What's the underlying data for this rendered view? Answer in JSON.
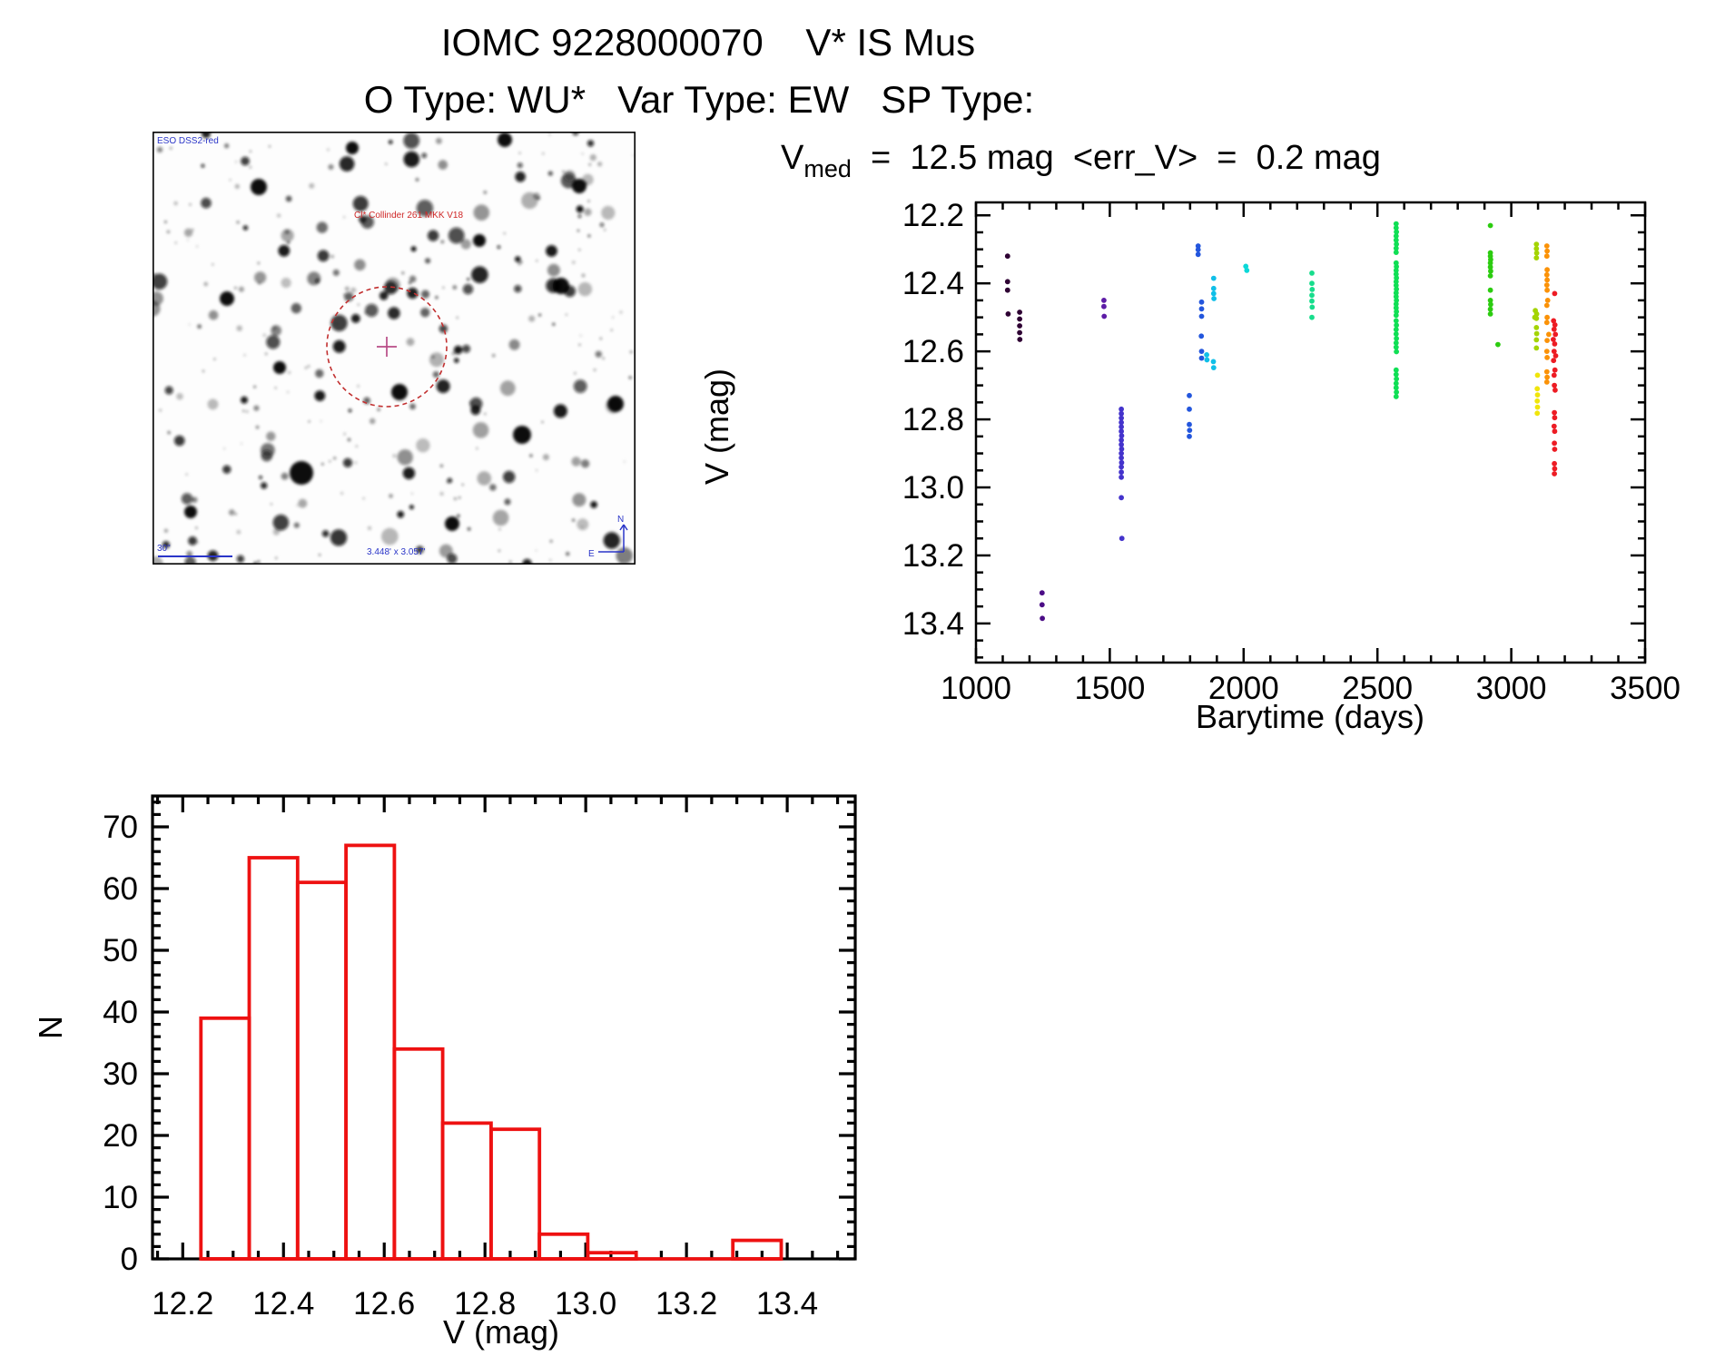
{
  "header": {
    "line1": "IOMC 9228000070    V* IS Mus",
    "line2": "O Type: WU*   Var Type: EW   SP Type:"
  },
  "finder": {
    "survey_label": "ESO DSS2-red",
    "object_label": "Cl* Collinder 261 MKK V18",
    "scale_bar_label": "30\"",
    "field_size_label": "3.448' x 3.057'",
    "compass_north": "N",
    "compass_east": "E",
    "annotation_blue": "#2a35c8",
    "annotation_red": "#c23030",
    "target_cross_color": "#b84b86"
  },
  "chart_data": [
    {
      "type": "scatter",
      "name": "light_curve",
      "title_v": "V",
      "title_sub": "med",
      "title_rest": "  =  12.5 mag  <err_V>  =  0.2 mag",
      "xlabel": "Barytime (days)",
      "ylabel": "V (mag)",
      "x_range": [
        1000,
        3500
      ],
      "y_range": [
        12.162,
        13.515
      ],
      "y_increases_downward": true,
      "x_ticks": [
        1000,
        1500,
        2000,
        2500,
        3000,
        3500
      ],
      "x_tick_labels": [
        "1000",
        "1500",
        "2000",
        "2500",
        "3000",
        "3500"
      ],
      "x_minor_step": 100,
      "y_ticks": [
        12.2,
        12.4,
        12.6,
        12.8,
        13.0,
        13.2,
        13.4
      ],
      "y_tick_labels": [
        "12.2",
        "12.4",
        "12.6",
        "12.8",
        "13.0",
        "13.2",
        "13.4"
      ],
      "y_minor_step": 0.05,
      "grid": false,
      "legend": "none (points color-coded by epoch, violet=early to red=late)",
      "palette": [
        "#2e0033",
        "#4b0d86",
        "#5d1ca6",
        "#4433cc",
        "#2356dd",
        "#10bfe8",
        "#0cd8d8",
        "#17dd8c",
        "#10df55",
        "#2ccc10",
        "#a4d403",
        "#f0e50a",
        "#fb9207",
        "#ed1c24"
      ],
      "points": [
        [
          1118,
          12.32,
          0
        ],
        [
          1118,
          12.395,
          0
        ],
        [
          1118,
          12.42,
          0
        ],
        [
          1120,
          12.49,
          0
        ],
        [
          1163,
          12.485,
          0
        ],
        [
          1163,
          12.505,
          0
        ],
        [
          1163,
          12.525,
          0
        ],
        [
          1163,
          12.545,
          0
        ],
        [
          1164,
          12.565,
          0
        ],
        [
          1247,
          13.31,
          1
        ],
        [
          1247,
          13.345,
          1
        ],
        [
          1248,
          13.385,
          1
        ],
        [
          1478,
          12.45,
          2
        ],
        [
          1478,
          12.468,
          2
        ],
        [
          1479,
          12.497,
          2
        ],
        [
          1543,
          12.77,
          3
        ],
        [
          1543,
          12.783,
          3
        ],
        [
          1543,
          12.796,
          3
        ],
        [
          1543,
          12.809,
          3
        ],
        [
          1543,
          12.822,
          3
        ],
        [
          1543,
          12.835,
          3
        ],
        [
          1544,
          12.848,
          3
        ],
        [
          1543,
          12.861,
          3
        ],
        [
          1543,
          12.874,
          3
        ],
        [
          1544,
          12.887,
          3
        ],
        [
          1543,
          12.9,
          3
        ],
        [
          1543,
          12.913,
          3
        ],
        [
          1544,
          12.927,
          3
        ],
        [
          1543,
          12.94,
          3
        ],
        [
          1543,
          12.955,
          3
        ],
        [
          1543,
          12.97,
          3
        ],
        [
          1543,
          13.03,
          3
        ],
        [
          1545,
          13.15,
          3
        ],
        [
          1797,
          12.73,
          4
        ],
        [
          1797,
          12.77,
          4
        ],
        [
          1797,
          12.815,
          4
        ],
        [
          1798,
          12.832,
          4
        ],
        [
          1797,
          12.85,
          4
        ],
        [
          1830,
          12.29,
          4
        ],
        [
          1830,
          12.301,
          4
        ],
        [
          1830,
          12.315,
          4
        ],
        [
          1843,
          12.455,
          4
        ],
        [
          1843,
          12.475,
          4
        ],
        [
          1843,
          12.497,
          4
        ],
        [
          1842,
          12.555,
          4
        ],
        [
          1843,
          12.6,
          4
        ],
        [
          1843,
          12.62,
          4
        ],
        [
          1862,
          12.61,
          5
        ],
        [
          1863,
          12.625,
          5
        ],
        [
          1888,
          12.385,
          5
        ],
        [
          1888,
          12.415,
          5
        ],
        [
          1888,
          12.43,
          5
        ],
        [
          1889,
          12.445,
          5
        ],
        [
          1887,
          12.63,
          5
        ],
        [
          1888,
          12.648,
          5
        ],
        [
          2008,
          12.35,
          6
        ],
        [
          2012,
          12.362,
          6
        ],
        [
          2255,
          12.37,
          7
        ],
        [
          2255,
          12.4,
          7
        ],
        [
          2256,
          12.418,
          7
        ],
        [
          2255,
          12.435,
          7
        ],
        [
          2255,
          12.452,
          7
        ],
        [
          2256,
          12.47,
          7
        ],
        [
          2255,
          12.5,
          7
        ],
        [
          2570,
          12.225,
          8
        ],
        [
          2570,
          12.237,
          8
        ],
        [
          2571,
          12.249,
          8
        ],
        [
          2570,
          12.261,
          8
        ],
        [
          2570,
          12.273,
          8
        ],
        [
          2571,
          12.285,
          8
        ],
        [
          2570,
          12.297,
          8
        ],
        [
          2570,
          12.309,
          8
        ],
        [
          2570,
          12.34,
          8
        ],
        [
          2571,
          12.351,
          8
        ],
        [
          2570,
          12.362,
          8
        ],
        [
          2570,
          12.373,
          8
        ],
        [
          2571,
          12.384,
          8
        ],
        [
          2570,
          12.395,
          8
        ],
        [
          2570,
          12.406,
          8
        ],
        [
          2571,
          12.417,
          8
        ],
        [
          2570,
          12.428,
          8
        ],
        [
          2570,
          12.439,
          8
        ],
        [
          2571,
          12.45,
          8
        ],
        [
          2570,
          12.461,
          8
        ],
        [
          2570,
          12.472,
          8
        ],
        [
          2571,
          12.483,
          8
        ],
        [
          2570,
          12.494,
          8
        ],
        [
          2570,
          12.51,
          8
        ],
        [
          2571,
          12.523,
          8
        ],
        [
          2570,
          12.536,
          8
        ],
        [
          2570,
          12.549,
          8
        ],
        [
          2571,
          12.562,
          8
        ],
        [
          2570,
          12.575,
          8
        ],
        [
          2570,
          12.588,
          8
        ],
        [
          2571,
          12.601,
          8
        ],
        [
          2570,
          12.655,
          8
        ],
        [
          2570,
          12.668,
          8
        ],
        [
          2571,
          12.681,
          8
        ],
        [
          2570,
          12.694,
          8
        ],
        [
          2570,
          12.707,
          8
        ],
        [
          2571,
          12.72,
          8
        ],
        [
          2570,
          12.733,
          8
        ],
        [
          2922,
          12.23,
          9
        ],
        [
          2922,
          12.31,
          9
        ],
        [
          2922,
          12.32,
          9
        ],
        [
          2923,
          12.33,
          9
        ],
        [
          2922,
          12.34,
          9
        ],
        [
          2922,
          12.352,
          9
        ],
        [
          2923,
          12.364,
          9
        ],
        [
          2922,
          12.378,
          9
        ],
        [
          2922,
          12.42,
          9
        ],
        [
          2922,
          12.45,
          9
        ],
        [
          2923,
          12.462,
          9
        ],
        [
          2922,
          12.476,
          9
        ],
        [
          2922,
          12.49,
          9
        ],
        [
          2950,
          12.58,
          9
        ],
        [
          3094,
          12.285,
          10
        ],
        [
          3094,
          12.298,
          10
        ],
        [
          3095,
          12.311,
          10
        ],
        [
          3094,
          12.325,
          10
        ],
        [
          3090,
          12.48,
          10
        ],
        [
          3095,
          12.49,
          10
        ],
        [
          3094,
          12.503,
          10
        ],
        [
          3088,
          12.5,
          10
        ],
        [
          3094,
          12.53,
          10
        ],
        [
          3095,
          12.548,
          10
        ],
        [
          3094,
          12.566,
          10
        ],
        [
          3094,
          12.59,
          10
        ],
        [
          3098,
          12.67,
          11
        ],
        [
          3097,
          12.71,
          11
        ],
        [
          3098,
          12.728,
          11
        ],
        [
          3097,
          12.746,
          11
        ],
        [
          3098,
          12.764,
          11
        ],
        [
          3097,
          12.782,
          11
        ],
        [
          3133,
          12.29,
          12
        ],
        [
          3134,
          12.305,
          12
        ],
        [
          3133,
          12.32,
          12
        ],
        [
          3134,
          12.36,
          12
        ],
        [
          3133,
          12.375,
          12
        ],
        [
          3134,
          12.39,
          12
        ],
        [
          3133,
          12.405,
          12
        ],
        [
          3134,
          12.42,
          12
        ],
        [
          3136,
          12.45,
          12
        ],
        [
          3133,
          12.465,
          12
        ],
        [
          3134,
          12.5,
          12
        ],
        [
          3133,
          12.515,
          12
        ],
        [
          3140,
          12.55,
          12
        ],
        [
          3134,
          12.568,
          12
        ],
        [
          3133,
          12.6,
          12
        ],
        [
          3134,
          12.618,
          12
        ],
        [
          3133,
          12.66,
          12
        ],
        [
          3134,
          12.676,
          12
        ],
        [
          3133,
          12.69,
          12
        ],
        [
          3162,
          12.43,
          13
        ],
        [
          3158,
          12.51,
          13
        ],
        [
          3163,
          12.522,
          13
        ],
        [
          3160,
          12.535,
          13
        ],
        [
          3165,
          12.55,
          13
        ],
        [
          3157,
          12.565,
          13
        ],
        [
          3162,
          12.578,
          13
        ],
        [
          3160,
          12.6,
          13
        ],
        [
          3166,
          12.613,
          13
        ],
        [
          3158,
          12.627,
          13
        ],
        [
          3163,
          12.655,
          13
        ],
        [
          3160,
          12.67,
          13
        ],
        [
          3161,
          12.7,
          13
        ],
        [
          3164,
          12.714,
          13
        ],
        [
          3161,
          12.78,
          13
        ],
        [
          3162,
          12.795,
          13
        ],
        [
          3160,
          12.82,
          13
        ],
        [
          3162,
          12.835,
          13
        ],
        [
          3161,
          12.87,
          13
        ],
        [
          3162,
          12.888,
          13
        ],
        [
          3161,
          12.93,
          13
        ],
        [
          3162,
          12.945,
          13
        ],
        [
          3161,
          12.96,
          13
        ]
      ]
    },
    {
      "type": "histogram",
      "name": "v_magnitude_distribution",
      "xlabel": "V (mag)",
      "ylabel": "N",
      "x_range": [
        12.14,
        13.535
      ],
      "y_range": [
        0,
        75
      ],
      "x_ticks": [
        12.2,
        12.4,
        12.6,
        12.8,
        13.0,
        13.2,
        13.4
      ],
      "x_tick_labels": [
        "12.2",
        "12.4",
        "12.6",
        "12.8",
        "13.0",
        "13.2",
        "13.4"
      ],
      "x_minor_step": 0.05,
      "y_ticks": [
        0,
        10,
        20,
        30,
        40,
        50,
        60,
        70
      ],
      "y_tick_labels": [
        "0",
        "10",
        "20",
        "30",
        "40",
        "50",
        "60",
        "70"
      ],
      "y_minor_step": 2,
      "grid": false,
      "bin_start": 12.236,
      "bin_width": 0.096,
      "counts": [
        39,
        65,
        61,
        67,
        34,
        22,
        21,
        4,
        1,
        0,
        0,
        3
      ],
      "bar_color": "#ee1111"
    }
  ]
}
